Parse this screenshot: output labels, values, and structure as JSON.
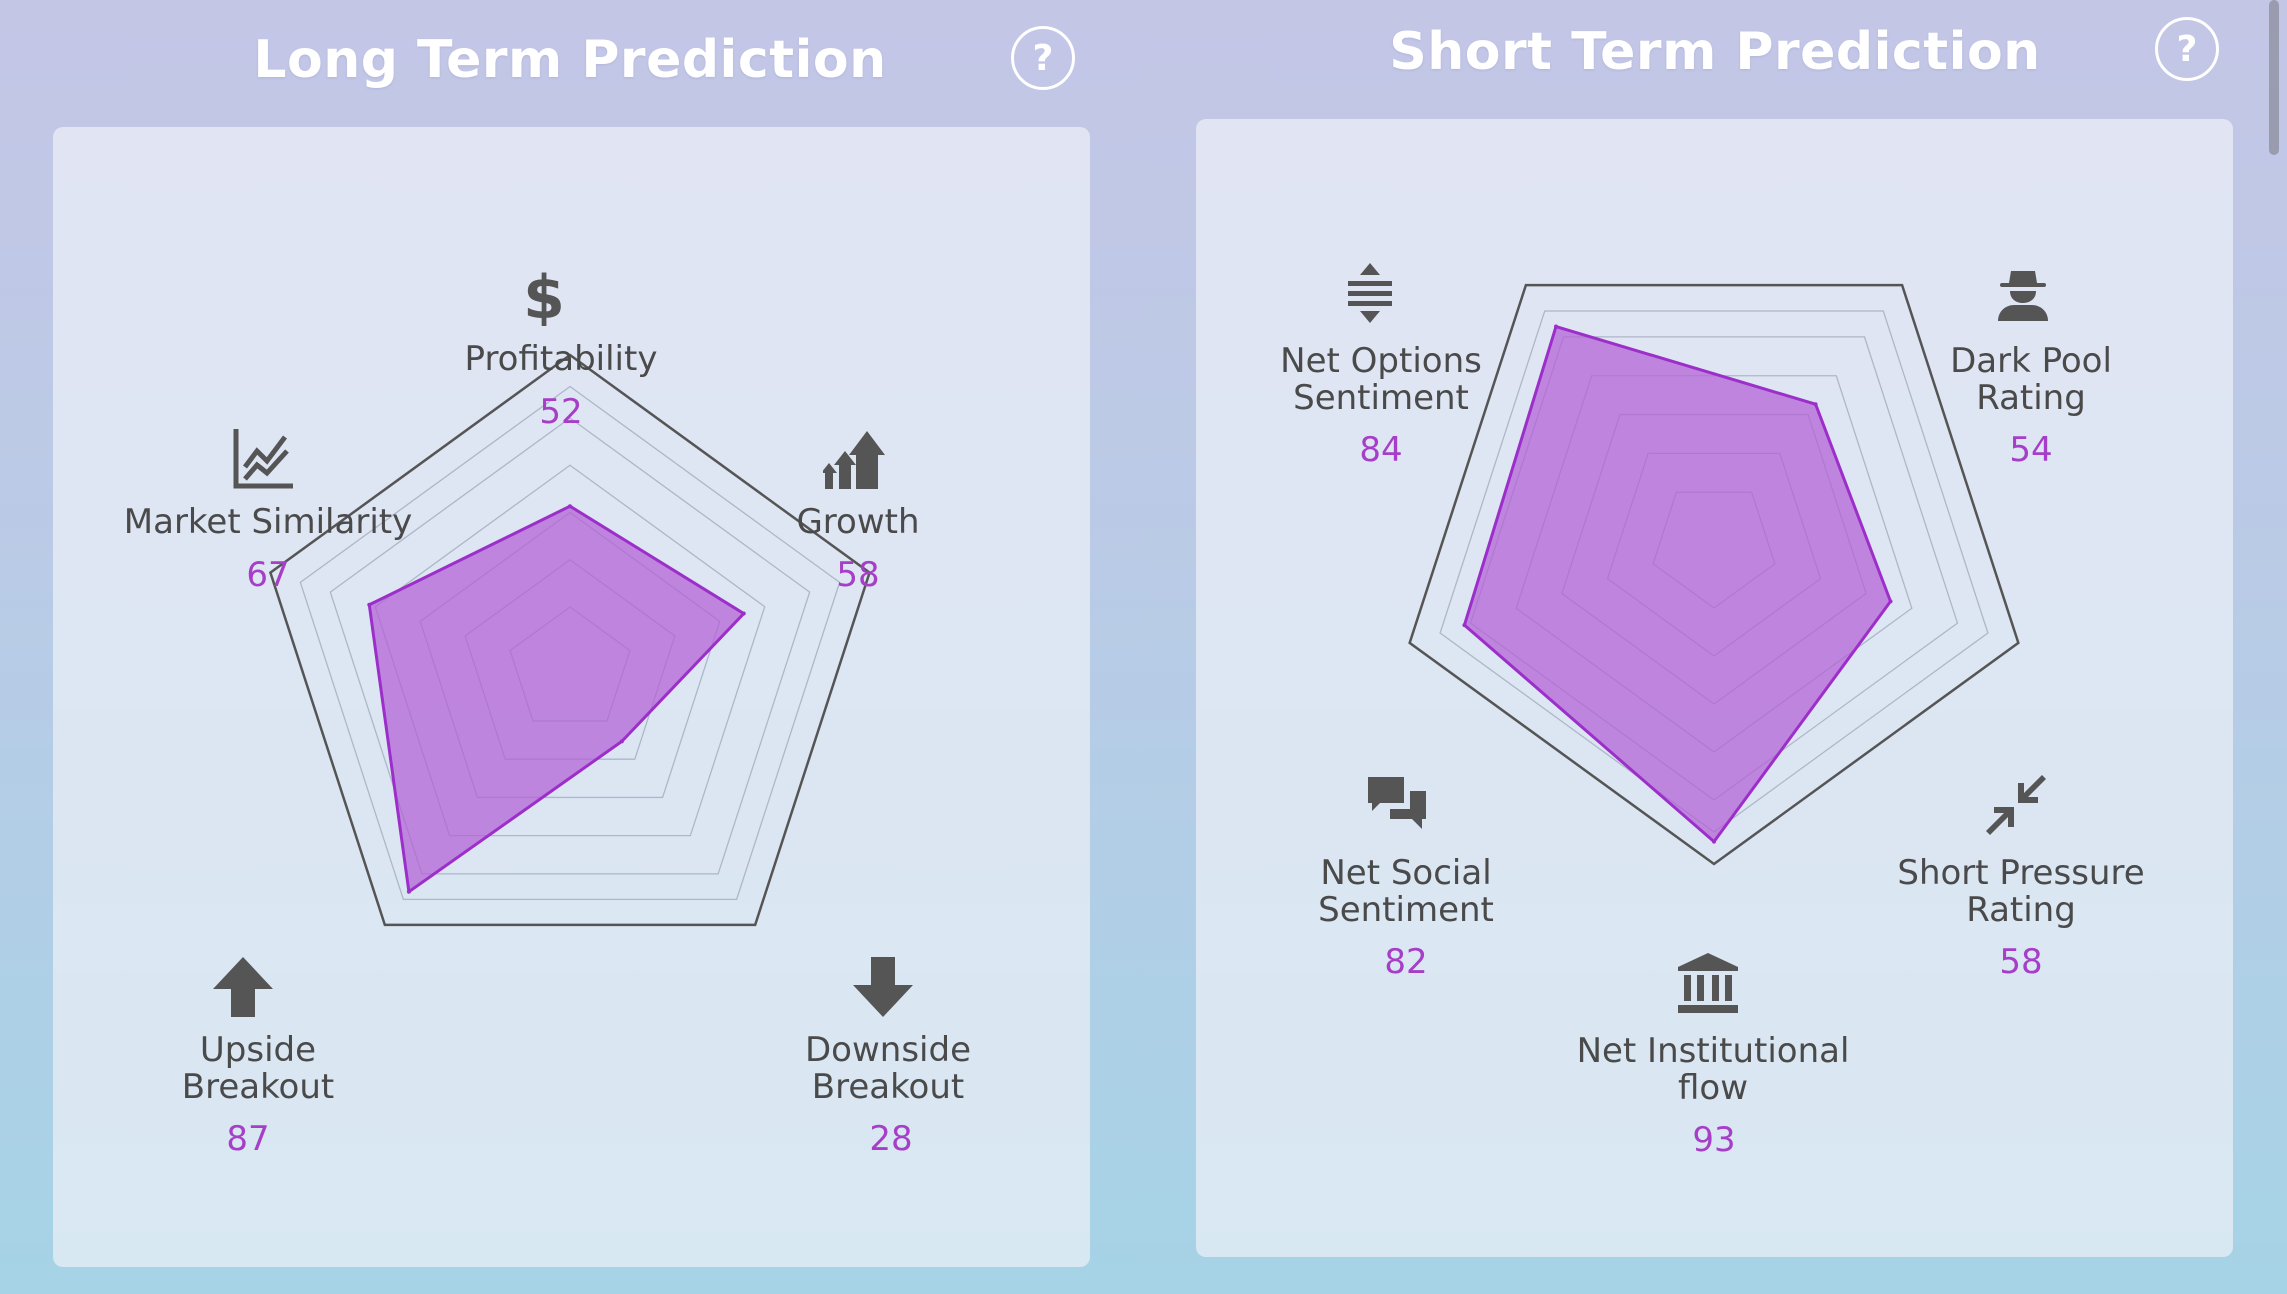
{
  "long_term": {
    "title": "Long Term Prediction",
    "help_label": "?",
    "axes": [
      {
        "label": "Profitability",
        "value": "52",
        "icon": "dollar-icon"
      },
      {
        "label": "Growth",
        "value": "58",
        "icon": "growth-arrows-icon"
      },
      {
        "label": "Downside\nBreakout",
        "value": "28",
        "icon": "arrow-down-icon"
      },
      {
        "label": "Upside\nBreakout",
        "value": "87",
        "icon": "arrow-up-icon"
      },
      {
        "label": "Market Similarity",
        "value": "67",
        "icon": "line-chart-icon"
      }
    ]
  },
  "short_term": {
    "title": "Short Term Prediction",
    "help_label": "?",
    "axes": [
      {
        "label": "Net Options\nSentiment",
        "value": "84",
        "icon": "options-arrows-icon"
      },
      {
        "label": "Dark Pool\nRating",
        "value": "54",
        "icon": "spy-icon"
      },
      {
        "label": "Short Pressure\nRating",
        "value": "58",
        "icon": "compress-arrows-icon"
      },
      {
        "label": "Net Institutional\nflow",
        "value": "93",
        "icon": "bank-icon"
      },
      {
        "label": "Net Social\nSentiment",
        "value": "82",
        "icon": "chat-bubbles-icon"
      }
    ]
  },
  "chart_data": [
    {
      "type": "radar",
      "title": "Long Term Prediction",
      "categories": [
        "Profitability",
        "Growth",
        "Downside Breakout",
        "Upside Breakout",
        "Market Similarity"
      ],
      "values": [
        52,
        58,
        28,
        87,
        67
      ],
      "range": [
        0,
        100
      ]
    },
    {
      "type": "radar",
      "title": "Short Term Prediction",
      "categories": [
        "Net Options Sentiment",
        "Dark Pool Rating",
        "Short Pressure Rating",
        "Net Institutional flow",
        "Net Social Sentiment"
      ],
      "values": [
        84,
        54,
        58,
        93,
        82
      ],
      "range": [
        0,
        100
      ]
    }
  ],
  "colors": {
    "fill": "#b35fd6",
    "stroke": "#9c2fc9",
    "value_text": "#a63fc8",
    "label_text": "#4a4a4a",
    "icon": "#555555",
    "grid": "#9aa3b5",
    "outer": "#555555"
  }
}
